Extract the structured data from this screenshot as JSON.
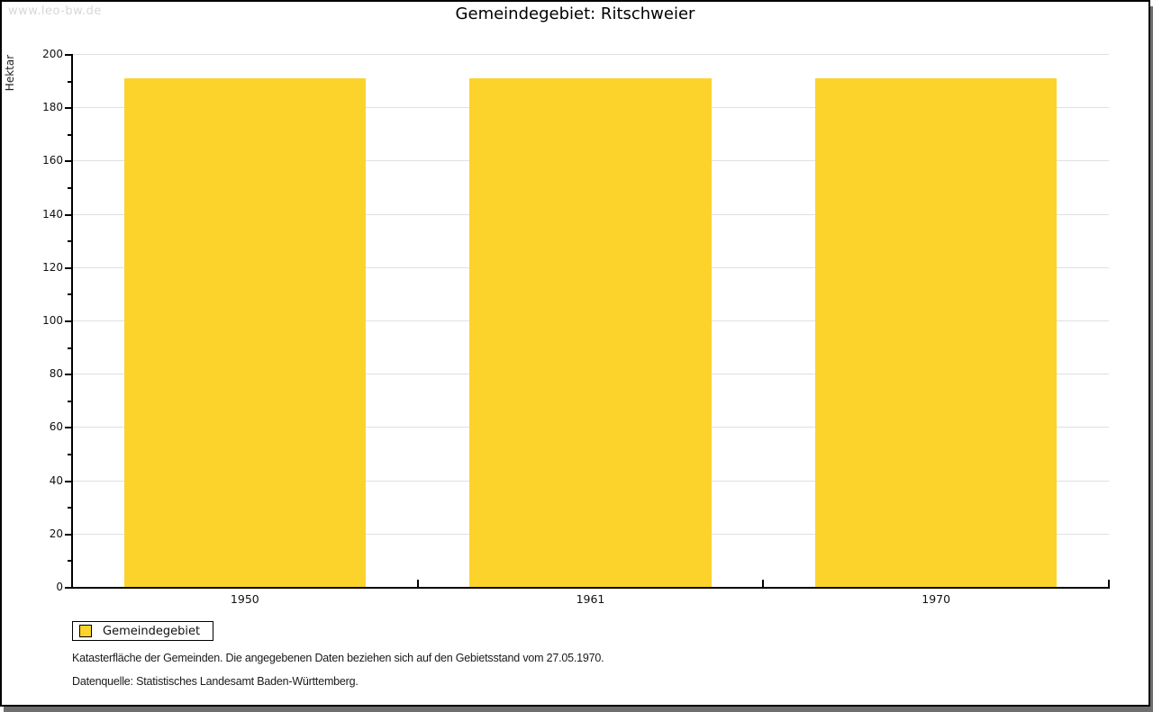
{
  "watermark": "www.leo-bw.de",
  "chart_data": {
    "type": "bar",
    "title": "Gemeindegebiet: Ritschweier",
    "categories": [
      "1950",
      "1961",
      "1970"
    ],
    "series": [
      {
        "name": "Gemeindegebiet",
        "values": [
          191,
          191,
          191
        ]
      }
    ],
    "xlabel": "",
    "ylabel": "Hektar",
    "ylim": [
      0,
      200
    ],
    "ytick_step": 20,
    "yminor_step": 10,
    "grid": true,
    "bar_color": "#FCD32B",
    "grid_color": "#e0e0e0",
    "axis_color": "#000000",
    "legend_position": "bottom-left"
  },
  "footnotes": [
    "Katasterfläche der Gemeinden. Die angegebenen Daten beziehen sich auf den Gebietsstand vom 27.05.1970.",
    "Datenquelle: Statistisches Landesamt Baden-Württemberg."
  ]
}
